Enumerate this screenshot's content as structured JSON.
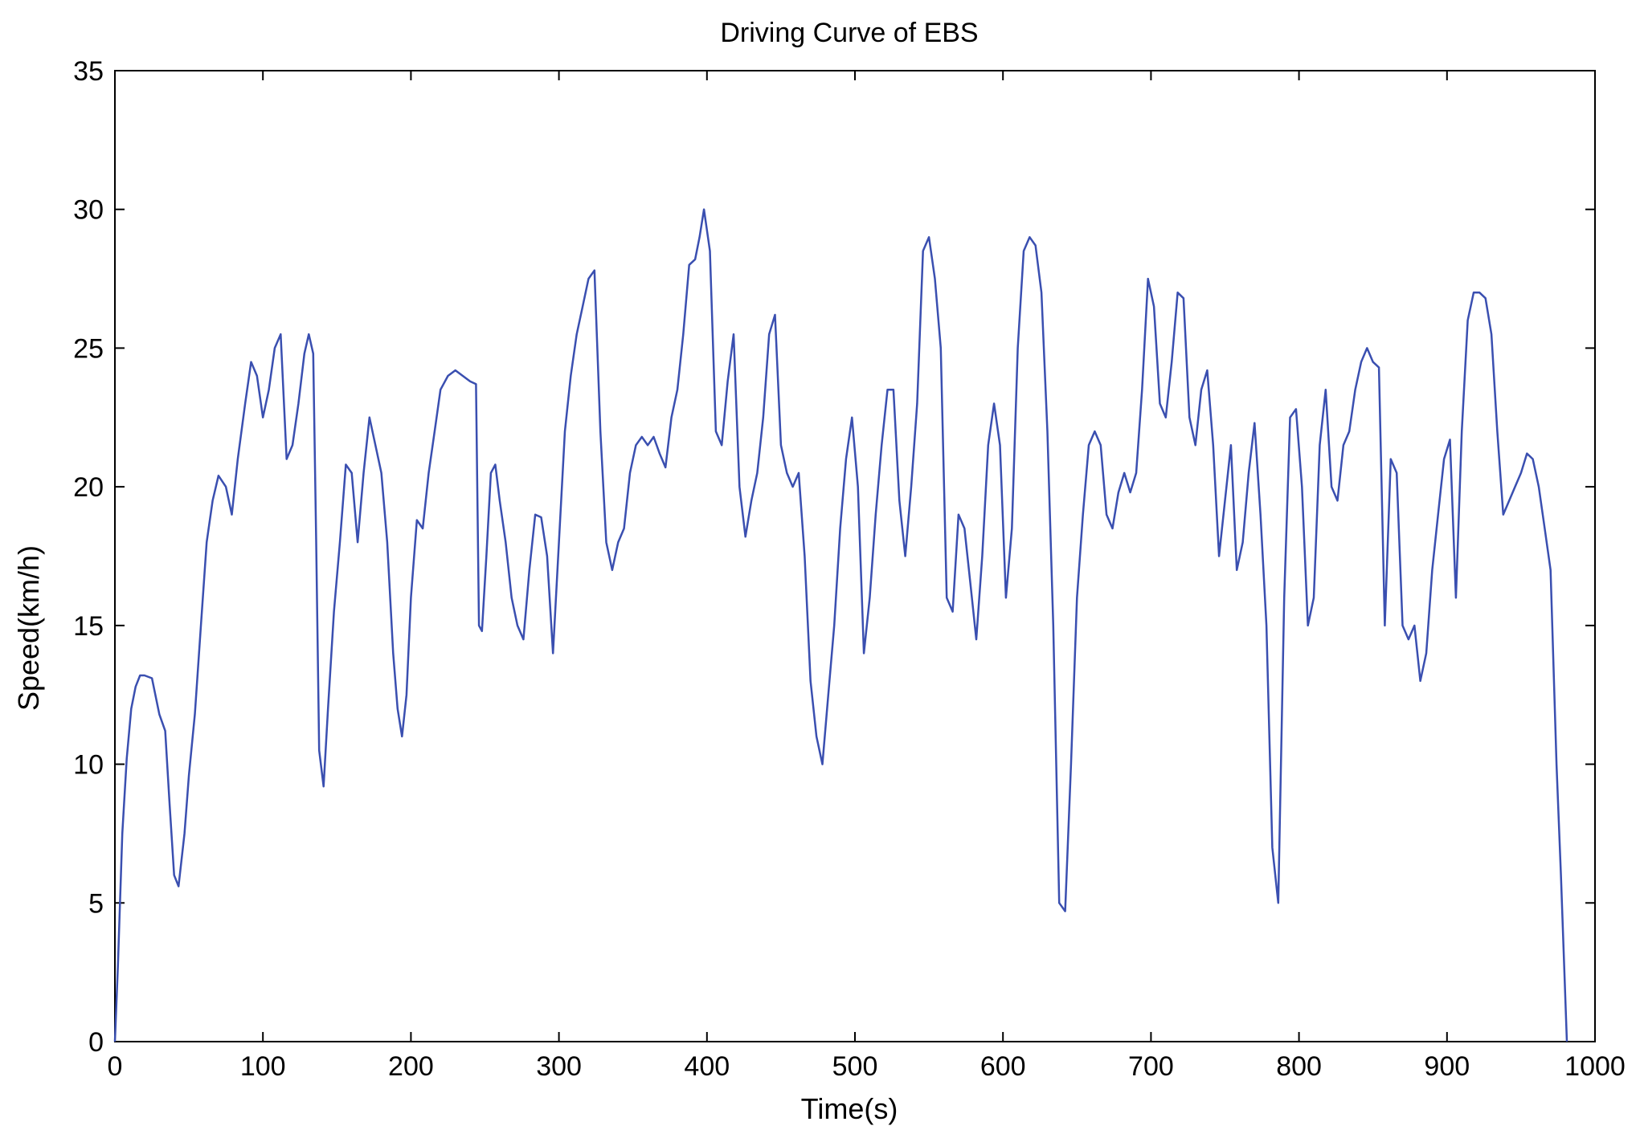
{
  "chart_data": {
    "type": "line",
    "title": "Driving Curve of EBS",
    "xlabel": "Time(s)",
    "ylabel": "Speed(km/h)",
    "xlim": [
      0,
      1000
    ],
    "ylim": [
      0,
      35
    ],
    "xticks": [
      0,
      100,
      200,
      300,
      400,
      500,
      600,
      700,
      800,
      900,
      1000
    ],
    "yticks": [
      0,
      5,
      10,
      15,
      20,
      25,
      30,
      35
    ],
    "grid": false,
    "line_color": "#3a4fb0",
    "series": [
      {
        "x": [
          0,
          2,
          5,
          8,
          11,
          14,
          17,
          20,
          25,
          30,
          34,
          37,
          40,
          43,
          47,
          50,
          54,
          58,
          62,
          66,
          70,
          75,
          79,
          83,
          88,
          92,
          96,
          100,
          104,
          108,
          112,
          116,
          120,
          124,
          128,
          131,
          134,
          136,
          138,
          141,
          144,
          148,
          152,
          156,
          160,
          164,
          168,
          172,
          176,
          180,
          184,
          188,
          191,
          194,
          197,
          200,
          204,
          208,
          212,
          216,
          220,
          225,
          230,
          235,
          240,
          244,
          246,
          248,
          251,
          254,
          257,
          260,
          264,
          268,
          272,
          276,
          280,
          284,
          288,
          292,
          296,
          300,
          304,
          308,
          312,
          316,
          320,
          324,
          328,
          332,
          336,
          340,
          344,
          348,
          352,
          356,
          360,
          364,
          368,
          372,
          376,
          380,
          384,
          388,
          392,
          395,
          398,
          402,
          406,
          410,
          414,
          418,
          422,
          426,
          430,
          434,
          438,
          442,
          446,
          450,
          454,
          458,
          462,
          466,
          470,
          474,
          478,
          482,
          486,
          490,
          494,
          498,
          502,
          506,
          510,
          514,
          518,
          522,
          526,
          530,
          534,
          538,
          542,
          546,
          550,
          554,
          558,
          562,
          566,
          570,
          574,
          578,
          582,
          586,
          590,
          594,
          598,
          602,
          606,
          610,
          614,
          618,
          622,
          626,
          630,
          634,
          638,
          642,
          646,
          650,
          654,
          658,
          662,
          666,
          670,
          674,
          678,
          682,
          686,
          690,
          694,
          698,
          702,
          706,
          710,
          714,
          718,
          722,
          726,
          730,
          734,
          738,
          742,
          746,
          750,
          754,
          758,
          762,
          766,
          770,
          774,
          778,
          782,
          786,
          790,
          794,
          798,
          802,
          806,
          810,
          814,
          818,
          822,
          826,
          830,
          834,
          838,
          842,
          846,
          850,
          854,
          858,
          862,
          866,
          870,
          874,
          878,
          882,
          886,
          890,
          894,
          898,
          902,
          906,
          910,
          914,
          918,
          922,
          926,
          930,
          934,
          938,
          942,
          946,
          950,
          954,
          958,
          962,
          966,
          970,
          974,
          977,
          979,
          981
        ],
        "y": [
          0,
          2.7,
          7.5,
          10.2,
          12,
          12.8,
          13.2,
          13.2,
          13.1,
          11.8,
          11.2,
          8.5,
          6,
          5.6,
          7.5,
          9.6,
          11.8,
          14.9,
          18,
          19.5,
          20.4,
          20,
          19,
          21,
          23,
          24.5,
          24,
          22.5,
          23.5,
          25,
          25.5,
          21,
          21.5,
          23,
          24.8,
          25.5,
          24.8,
          18,
          10.5,
          9.2,
          12,
          15.5,
          18,
          20.8,
          20.5,
          18,
          20.5,
          22.5,
          21.5,
          20.5,
          18,
          14,
          12,
          11,
          12.5,
          16,
          18.8,
          18.5,
          20.5,
          22,
          23.5,
          24,
          24.2,
          24,
          23.8,
          23.7,
          15,
          14.8,
          17.5,
          20.5,
          20.8,
          19.5,
          18,
          16,
          15,
          14.5,
          17,
          19,
          18.9,
          17.5,
          14,
          18,
          22,
          24,
          25.5,
          26.5,
          27.5,
          27.8,
          22,
          18,
          17,
          18,
          18.5,
          20.5,
          21.5,
          21.8,
          21.5,
          21.8,
          21.2,
          20.7,
          22.5,
          23.5,
          25.5,
          28,
          28.2,
          29,
          30,
          28.5,
          22,
          21.5,
          23.8,
          25.5,
          20,
          18.2,
          19.5,
          20.5,
          22.5,
          25.5,
          26.2,
          21.5,
          20.5,
          20,
          20.5,
          17.5,
          13,
          11,
          10,
          12.5,
          15,
          18.5,
          21,
          22.5,
          20,
          14,
          16,
          19,
          21.5,
          23.5,
          23.5,
          19.5,
          17.5,
          20,
          23,
          28.5,
          29,
          27.5,
          25,
          16,
          15.5,
          19,
          18.5,
          16.5,
          14.5,
          17.5,
          21.5,
          23,
          21.5,
          16,
          18.5,
          25,
          28.5,
          29,
          28.7,
          27,
          22,
          15,
          5,
          4.7,
          10,
          16,
          19,
          21.5,
          22,
          21.5,
          19,
          18.5,
          19.8,
          20.5,
          19.8,
          20.5,
          23.5,
          27.5,
          26.5,
          23,
          22.5,
          24.5,
          27,
          26.8,
          22.5,
          21.5,
          23.5,
          24.2,
          21.5,
          17.5,
          19.5,
          21.5,
          17,
          18,
          20.5,
          22.3,
          19,
          15,
          7,
          5,
          16,
          22.5,
          22.8,
          20,
          15,
          16,
          21.5,
          23.5,
          20,
          19.5,
          21.5,
          22,
          23.5,
          24.5,
          25,
          24.5,
          24.3,
          15,
          21,
          20.5,
          15,
          14.5,
          15,
          13,
          14,
          17,
          19,
          21,
          21.7,
          16,
          22,
          26,
          27,
          27,
          26.8,
          25.5,
          22,
          19,
          19.5,
          20,
          20.5,
          21.2,
          21,
          20,
          18.5,
          17,
          10,
          6,
          3,
          0
        ]
      }
    ]
  }
}
